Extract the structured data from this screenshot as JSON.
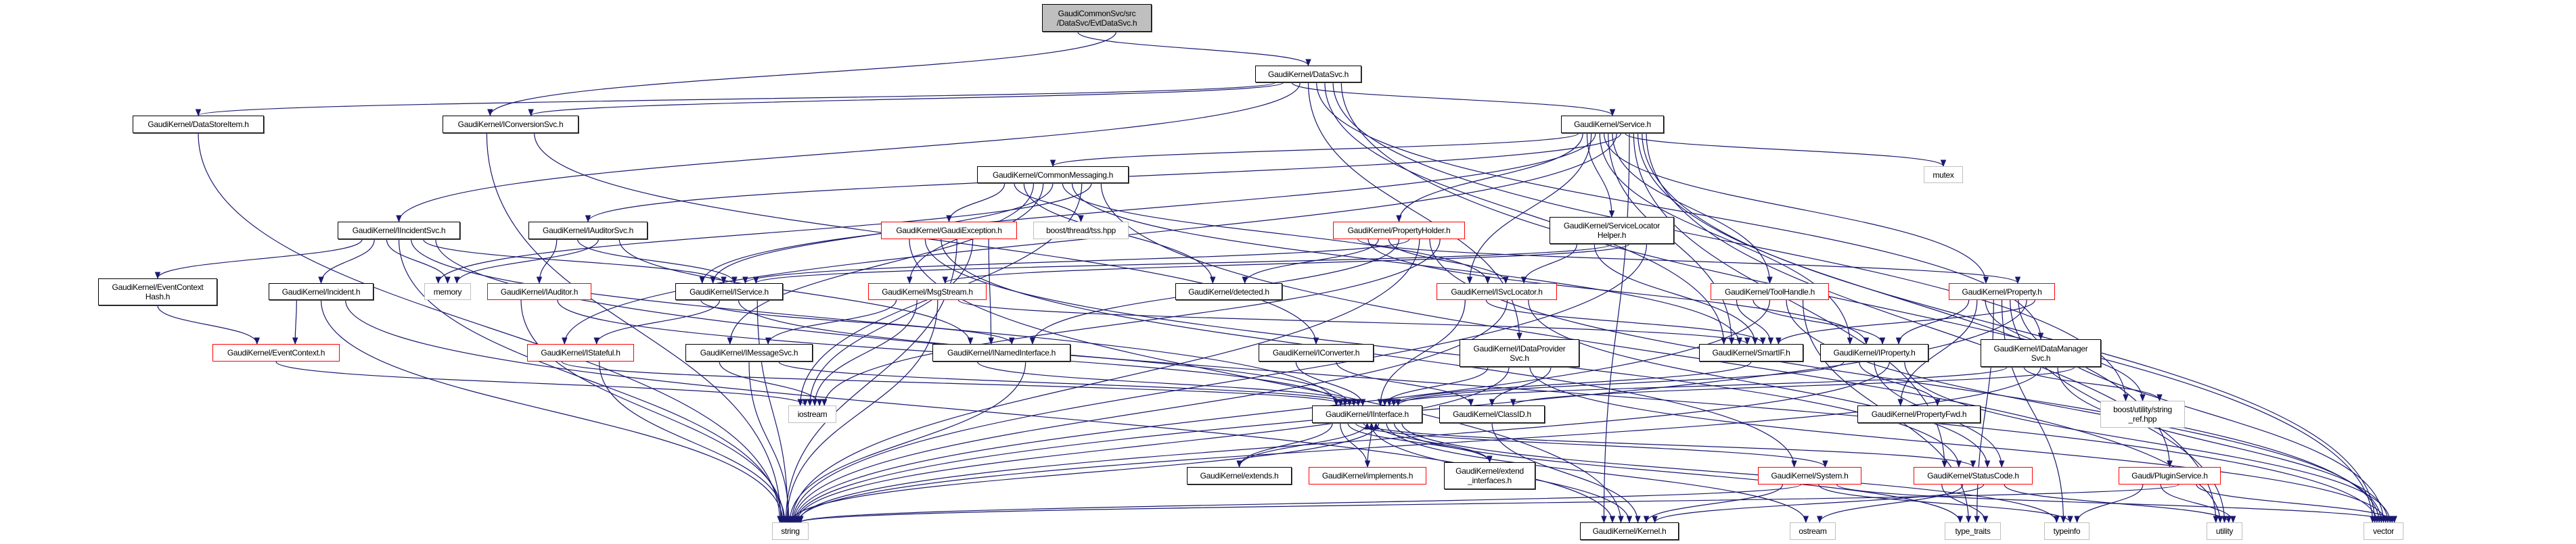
{
  "colors": {
    "edge": "#191970",
    "normal_border": "#000000",
    "incomplete_border": "#ff0000",
    "system_border": "#bfbfbf",
    "root_fill": "#bfbfbf"
  },
  "nodes": [
    {
      "id": "root",
      "label": "GaudiCommonSvc/src\n/DataSvc/EvtDataSvc.h",
      "kind": "root"
    },
    {
      "id": "datasvc",
      "label": "GaudiKernel/DataSvc.h",
      "kind": "normal"
    },
    {
      "id": "datastoreitem",
      "label": "GaudiKernel/DataStoreItem.h",
      "kind": "normal"
    },
    {
      "id": "iconversionsvc",
      "label": "GaudiKernel/IConversionSvc.h",
      "kind": "normal"
    },
    {
      "id": "service",
      "label": "GaudiKernel/Service.h",
      "kind": "normal"
    },
    {
      "id": "commonmessaging",
      "label": "GaudiKernel/CommonMessaging.h",
      "kind": "normal"
    },
    {
      "id": "mutex",
      "label": "mutex",
      "kind": "grey"
    },
    {
      "id": "iincidentsvc",
      "label": "GaudiKernel/IIncidentSvc.h",
      "kind": "normal"
    },
    {
      "id": "iauditorsvc",
      "label": "GaudiKernel/IAuditorSvc.h",
      "kind": "normal"
    },
    {
      "id": "gaudiexception",
      "label": "GaudiKernel/GaudiException.h",
      "kind": "red"
    },
    {
      "id": "tss",
      "label": "boost/thread/tss.hpp",
      "kind": "grey"
    },
    {
      "id": "propertyholder",
      "label": "GaudiKernel/PropertyHolder.h",
      "kind": "red"
    },
    {
      "id": "servicelocatorhelper",
      "label": "GaudiKernel/ServiceLocator\nHelper.h",
      "kind": "normal"
    },
    {
      "id": "eventcontexthash",
      "label": "GaudiKernel/EventContext\nHash.h",
      "kind": "normal"
    },
    {
      "id": "incident",
      "label": "GaudiKernel/Incident.h",
      "kind": "normal"
    },
    {
      "id": "memory",
      "label": "memory",
      "kind": "grey"
    },
    {
      "id": "iauditor",
      "label": "GaudiKernel/IAuditor.h",
      "kind": "red"
    },
    {
      "id": "iservice",
      "label": "GaudiKernel/IService.h",
      "kind": "normal"
    },
    {
      "id": "msgstream",
      "label": "GaudiKernel/MsgStream.h",
      "kind": "red"
    },
    {
      "id": "detected",
      "label": "GaudiKernel/detected.h",
      "kind": "normal"
    },
    {
      "id": "isvclocator",
      "label": "GaudiKernel/ISvcLocator.h",
      "kind": "red"
    },
    {
      "id": "toolhandle",
      "label": "GaudiKernel/ToolHandle.h",
      "kind": "red"
    },
    {
      "id": "property",
      "label": "GaudiKernel/Property.h",
      "kind": "red"
    },
    {
      "id": "eventcontext",
      "label": "GaudiKernel/EventContext.h",
      "kind": "red"
    },
    {
      "id": "istateful",
      "label": "GaudiKernel/IStateful.h",
      "kind": "red"
    },
    {
      "id": "imessagesvc",
      "label": "GaudiKernel/IMessageSvc.h",
      "kind": "normal"
    },
    {
      "id": "inamedinterface",
      "label": "GaudiKernel/INamedInterface.h",
      "kind": "normal"
    },
    {
      "id": "iconverter",
      "label": "GaudiKernel/IConverter.h",
      "kind": "normal"
    },
    {
      "id": "idataprovidersvc",
      "label": "GaudiKernel/IDataProvider\nSvc.h",
      "kind": "normal"
    },
    {
      "id": "smartif",
      "label": "GaudiKernel/SmartIF.h",
      "kind": "normal"
    },
    {
      "id": "iproperty",
      "label": "GaudiKernel/IProperty.h",
      "kind": "normal"
    },
    {
      "id": "idatamanagersvc",
      "label": "GaudiKernel/IDataManager\nSvc.h",
      "kind": "normal"
    },
    {
      "id": "iostream",
      "label": "iostream",
      "kind": "grey"
    },
    {
      "id": "interface",
      "label": "GaudiKernel/IInterface.h",
      "kind": "normal"
    },
    {
      "id": "classid",
      "label": "GaudiKernel/ClassID.h",
      "kind": "normal"
    },
    {
      "id": "propertyfwd",
      "label": "GaudiKernel/PropertyFwd.h",
      "kind": "normal"
    },
    {
      "id": "stringref",
      "label": "boost/utility/string\n_ref.hpp",
      "kind": "grey"
    },
    {
      "id": "extends",
      "label": "GaudiKernel/extends.h",
      "kind": "normal"
    },
    {
      "id": "implements",
      "label": "GaudiKernel/implements.h",
      "kind": "red"
    },
    {
      "id": "extendinterfaces",
      "label": "GaudiKernel/extend\n_interfaces.h",
      "kind": "normal"
    },
    {
      "id": "system",
      "label": "GaudiKernel/System.h",
      "kind": "red"
    },
    {
      "id": "statuscode",
      "label": "GaudiKernel/StatusCode.h",
      "kind": "red"
    },
    {
      "id": "pluginservice",
      "label": "Gaudi/PluginService.h",
      "kind": "red"
    },
    {
      "id": "string",
      "label": "string",
      "kind": "grey"
    },
    {
      "id": "kernel",
      "label": "GaudiKernel/Kernel.h",
      "kind": "normal"
    },
    {
      "id": "ostream",
      "label": "ostream",
      "kind": "grey"
    },
    {
      "id": "typetraits",
      "label": "type_traits",
      "kind": "grey"
    },
    {
      "id": "typeinfo",
      "label": "typeinfo",
      "kind": "grey"
    },
    {
      "id": "utility",
      "label": "utility",
      "kind": "grey"
    },
    {
      "id": "vector",
      "label": "vector",
      "kind": "grey"
    }
  ],
  "edges": [
    [
      "root",
      "datasvc"
    ],
    [
      "root",
      "iconversionsvc"
    ],
    [
      "datasvc",
      "datastoreitem"
    ],
    [
      "datasvc",
      "iconversionsvc"
    ],
    [
      "datasvc",
      "service"
    ],
    [
      "datasvc",
      "iincidentsvc"
    ],
    [
      "datasvc",
      "idataprovidersvc"
    ],
    [
      "datasvc",
      "idatamanagersvc"
    ],
    [
      "datasvc",
      "smartif"
    ],
    [
      "datasvc",
      "stringref"
    ],
    [
      "datasvc",
      "vector"
    ],
    [
      "datastoreitem",
      "string"
    ],
    [
      "iconversionsvc",
      "string"
    ],
    [
      "iconversionsvc",
      "iconverter"
    ],
    [
      "service",
      "commonmessaging"
    ],
    [
      "service",
      "propertyholder"
    ],
    [
      "service",
      "servicelocatorhelper"
    ],
    [
      "service",
      "isvclocator"
    ],
    [
      "service",
      "iservice"
    ],
    [
      "service",
      "iproperty"
    ],
    [
      "service",
      "property"
    ],
    [
      "service",
      "smartif"
    ],
    [
      "service",
      "toolhandle"
    ],
    [
      "service",
      "istateful"
    ],
    [
      "service",
      "iauditorsvc"
    ],
    [
      "service",
      "mutex"
    ],
    [
      "service",
      "kernel"
    ],
    [
      "service",
      "statuscode"
    ],
    [
      "service",
      "pluginservice"
    ],
    [
      "service",
      "vector"
    ],
    [
      "service",
      "utility"
    ],
    [
      "commonmessaging",
      "gaudiexception"
    ],
    [
      "commonmessaging",
      "tss"
    ],
    [
      "commonmessaging",
      "detected"
    ],
    [
      "commonmessaging",
      "msgstream"
    ],
    [
      "commonmessaging",
      "imessagesvc"
    ],
    [
      "commonmessaging",
      "iservice"
    ],
    [
      "commonmessaging",
      "isvclocator"
    ],
    [
      "commonmessaging",
      "smartif"
    ],
    [
      "commonmessaging",
      "iostream"
    ],
    [
      "commonmessaging",
      "memory"
    ],
    [
      "commonmessaging",
      "utility"
    ],
    [
      "iincidentsvc",
      "eventcontexthash"
    ],
    [
      "iincidentsvc",
      "incident"
    ],
    [
      "iincidentsvc",
      "memory"
    ],
    [
      "iincidentsvc",
      "string"
    ],
    [
      "iincidentsvc",
      "interface"
    ],
    [
      "iincidentsvc",
      "iservice"
    ],
    [
      "iincidentsvc",
      "vector"
    ],
    [
      "iauditorsvc",
      "iauditor"
    ],
    [
      "iauditorsvc",
      "iservice"
    ],
    [
      "iauditorsvc",
      "memory"
    ],
    [
      "iauditorsvc",
      "inamedinterface"
    ],
    [
      "eventcontexthash",
      "eventcontext"
    ],
    [
      "incident",
      "eventcontext"
    ],
    [
      "incident",
      "string"
    ],
    [
      "incident",
      "kernel"
    ],
    [
      "eventcontext",
      "iostream"
    ],
    [
      "iauditor",
      "string"
    ],
    [
      "iauditor",
      "interface"
    ],
    [
      "istateful",
      "interface"
    ],
    [
      "istateful",
      "string"
    ],
    [
      "gaudiexception",
      "kernel"
    ],
    [
      "gaudiexception",
      "statuscode"
    ],
    [
      "gaudiexception",
      "system"
    ],
    [
      "gaudiexception",
      "string"
    ],
    [
      "gaudiexception",
      "iostream"
    ],
    [
      "gaudiexception",
      "inamedinterface"
    ],
    [
      "msgstream",
      "imessagesvc"
    ],
    [
      "msgstream",
      "iostream"
    ],
    [
      "msgstream",
      "string"
    ],
    [
      "msgstream",
      "smartif"
    ],
    [
      "iservice",
      "inamedinterface"
    ],
    [
      "iservice",
      "istateful"
    ],
    [
      "iservice",
      "interface"
    ],
    [
      "iservice",
      "string"
    ],
    [
      "imessagesvc",
      "iostream"
    ],
    [
      "imessagesvc",
      "string"
    ],
    [
      "imessagesvc",
      "interface"
    ],
    [
      "inamedinterface",
      "interface"
    ],
    [
      "inamedinterface",
      "string"
    ],
    [
      "iconverter",
      "interface"
    ],
    [
      "iconverter",
      "classid"
    ],
    [
      "interface",
      "extends"
    ],
    [
      "interface",
      "implements"
    ],
    [
      "interface",
      "extendinterfaces"
    ],
    [
      "interface",
      "system"
    ],
    [
      "interface",
      "statuscode"
    ],
    [
      "interface",
      "kernel"
    ],
    [
      "interface",
      "string"
    ],
    [
      "interface",
      "ostream"
    ],
    [
      "interface",
      "typetraits"
    ],
    [
      "interface",
      "typeinfo"
    ],
    [
      "extends",
      "interface"
    ],
    [
      "implements",
      "interface"
    ],
    [
      "extendinterfaces",
      "interface"
    ],
    [
      "propertyholder",
      "property"
    ],
    [
      "propertyholder",
      "iproperty"
    ],
    [
      "propertyholder",
      "detected"
    ],
    [
      "propertyholder",
      "isvclocator"
    ],
    [
      "propertyholder",
      "inamedinterface"
    ],
    [
      "propertyholder",
      "iservice"
    ],
    [
      "propertyholder",
      "string"
    ],
    [
      "propertyholder",
      "vector"
    ],
    [
      "propertyholder",
      "iostream"
    ],
    [
      "servicelocatorhelper",
      "isvclocator"
    ],
    [
      "servicelocatorhelper",
      "smartif"
    ],
    [
      "servicelocatorhelper",
      "iservice"
    ],
    [
      "servicelocatorhelper",
      "msgstream"
    ],
    [
      "servicelocatorhelper",
      "string"
    ],
    [
      "isvclocator",
      "interface"
    ],
    [
      "isvclocator",
      "smartif"
    ],
    [
      "isvclocator",
      "string"
    ],
    [
      "isvclocator",
      "statuscode"
    ],
    [
      "toolhandle",
      "smartif"
    ],
    [
      "toolhandle",
      "iproperty"
    ],
    [
      "toolhandle",
      "string"
    ],
    [
      "toolhandle",
      "vector"
    ],
    [
      "toolhandle",
      "typetraits"
    ],
    [
      "property",
      "iproperty"
    ],
    [
      "property",
      "propertyfwd"
    ],
    [
      "property",
      "stringref"
    ],
    [
      "property",
      "typetraits"
    ],
    [
      "property",
      "typeinfo"
    ],
    [
      "property",
      "utility"
    ],
    [
      "property",
      "vector"
    ],
    [
      "property",
      "string"
    ],
    [
      "property",
      "smartif"
    ],
    [
      "idataprovidersvc",
      "interface"
    ],
    [
      "idataprovidersvc",
      "string"
    ],
    [
      "idataprovidersvc",
      "vector"
    ],
    [
      "idataprovidersvc",
      "classid"
    ],
    [
      "idatamanagersvc",
      "interface"
    ],
    [
      "idatamanagersvc",
      "stringref"
    ],
    [
      "idatamanagersvc",
      "string"
    ],
    [
      "idatamanagersvc",
      "vector"
    ],
    [
      "idatamanagersvc",
      "classid"
    ],
    [
      "smartif",
      "interface"
    ],
    [
      "iproperty",
      "interface"
    ],
    [
      "iproperty",
      "propertyfwd"
    ],
    [
      "iproperty",
      "statuscode"
    ],
    [
      "iproperty",
      "string"
    ],
    [
      "iproperty",
      "vector"
    ],
    [
      "classid",
      "kernel"
    ],
    [
      "system",
      "kernel"
    ],
    [
      "system",
      "string"
    ],
    [
      "system",
      "typeinfo"
    ],
    [
      "system",
      "vector"
    ],
    [
      "statuscode",
      "typetraits"
    ],
    [
      "statuscode",
      "ostream"
    ],
    [
      "statuscode",
      "kernel"
    ],
    [
      "statuscode",
      "utility"
    ],
    [
      "pluginservice",
      "typeinfo"
    ],
    [
      "pluginservice",
      "utility"
    ],
    [
      "pluginservice",
      "string"
    ],
    [
      "pluginservice",
      "vector"
    ]
  ]
}
